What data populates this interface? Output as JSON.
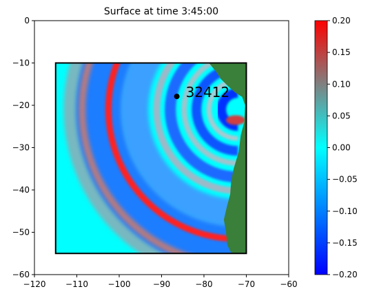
{
  "chart_data": {
    "type": "heatmap",
    "title": "Surface at time 3:45:00",
    "xlabel": "",
    "ylabel": "",
    "xlim": [
      -120,
      -60
    ],
    "ylim": [
      -60,
      0
    ],
    "x_ticks": [
      "−120",
      "−110",
      "−100",
      "−90",
      "−80",
      "−70",
      "−60"
    ],
    "y_ticks": [
      "0",
      "−10",
      "−20",
      "−30",
      "−40",
      "−50",
      "−60"
    ],
    "domain_box": {
      "x": [
        -115,
        -70
      ],
      "y": [
        -55,
        -10
      ]
    },
    "gauge": {
      "label": "32412",
      "x": -86.4,
      "y": -17.9
    },
    "colorbar": {
      "min": -0.2,
      "max": 0.2,
      "ticks": [
        "0.20",
        "0.15",
        "0.10",
        "0.05",
        "0.00",
        "−0.05",
        "−0.10",
        "−0.15",
        "−0.20"
      ],
      "colormap": [
        "#0000ff",
        "#00ffff",
        "#808080",
        "#ff0000"
      ]
    },
    "colors": {
      "land": "#3a7f3a",
      "background_water": "#00ffff"
    }
  }
}
